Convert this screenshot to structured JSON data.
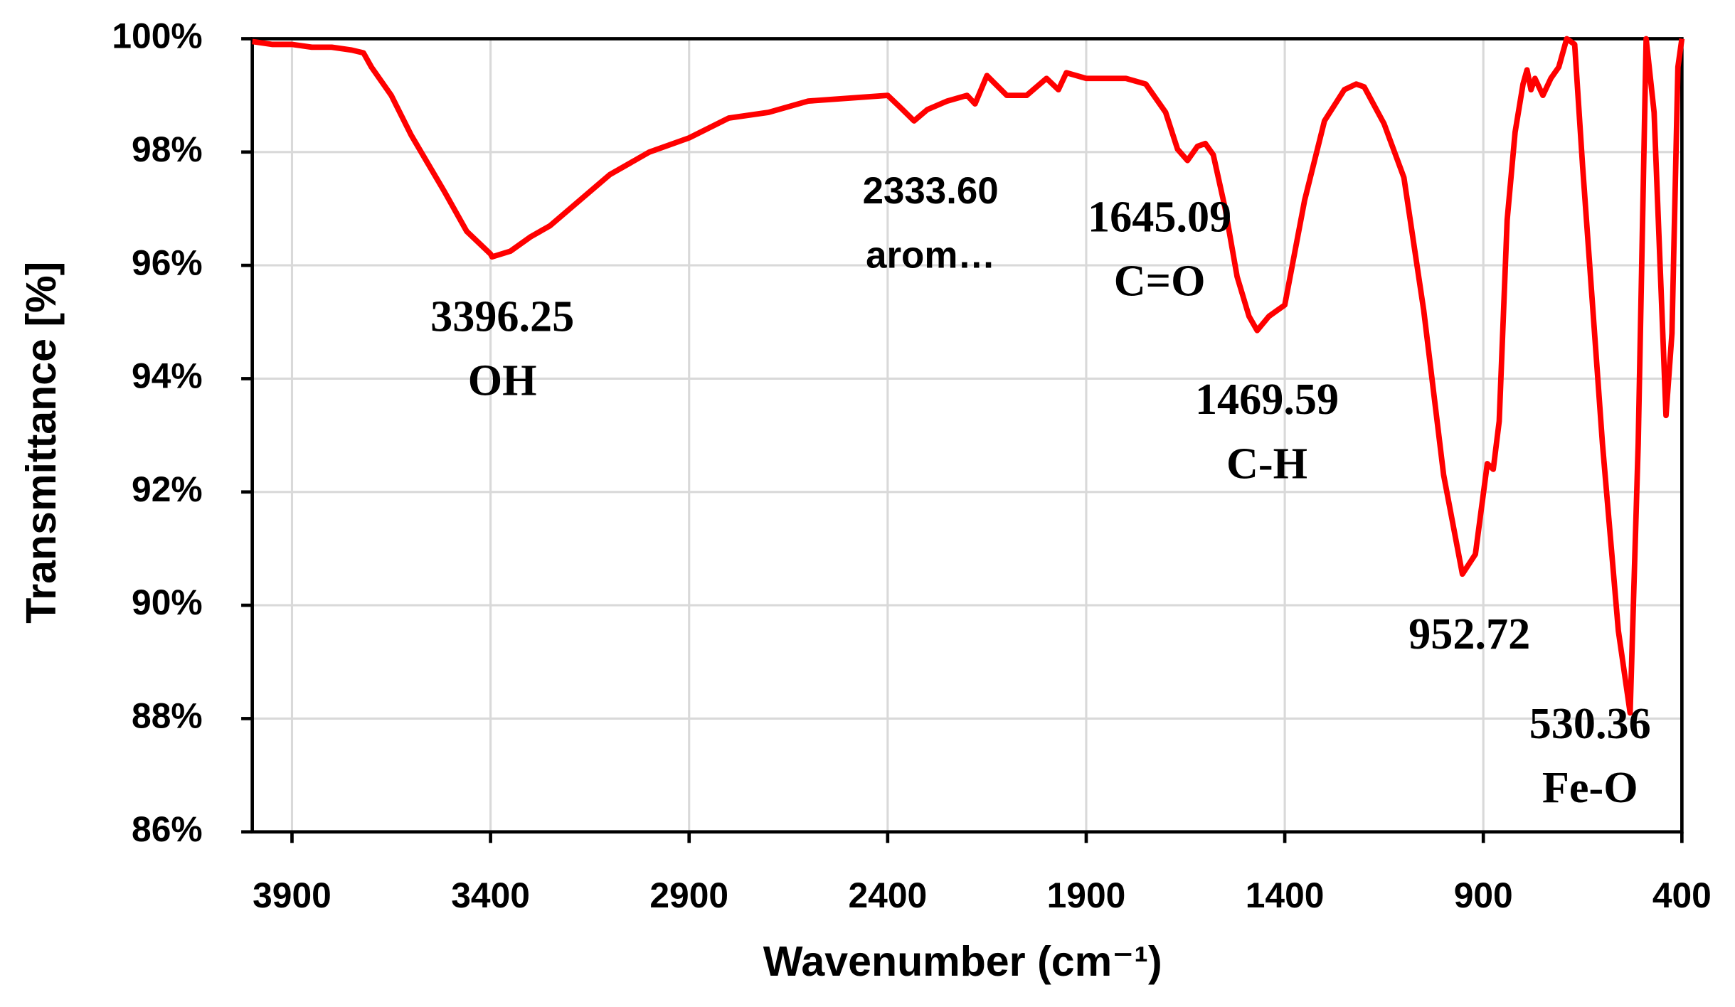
{
  "chart_data": {
    "type": "line",
    "xlabel": "Wavenumber (cm⁻¹)",
    "ylabel": "Transmittance [%]",
    "color": "#ff0000",
    "grid": true,
    "xlim": [
      4000,
      400
    ],
    "ylim": [
      86,
      100
    ],
    "xticks": [
      3900,
      3400,
      2900,
      2400,
      1900,
      1400,
      900,
      400
    ],
    "yticks": [
      {
        "value": 86,
        "label": "86%"
      },
      {
        "value": 88,
        "label": "88%"
      },
      {
        "value": 90,
        "label": "90%"
      },
      {
        "value": 92,
        "label": "92%"
      },
      {
        "value": 94,
        "label": "94%"
      },
      {
        "value": 96,
        "label": "96%"
      },
      {
        "value": 98,
        "label": "98%"
      },
      {
        "value": 100,
        "label": "100%"
      }
    ],
    "x": [
      4000,
      3950,
      3900,
      3850,
      3800,
      3750,
      3720,
      3700,
      3650,
      3600,
      3516,
      3460,
      3400,
      3396.25,
      3350,
      3300,
      3250,
      3200,
      3100,
      3000,
      2900,
      2800,
      2700,
      2600,
      2500,
      2400,
      2370,
      2333.6,
      2300,
      2250,
      2200,
      2180,
      2150,
      2100,
      2050,
      2000,
      1970,
      1950,
      1900,
      1800,
      1750,
      1700,
      1670,
      1645.09,
      1620,
      1600,
      1580,
      1550,
      1520,
      1490,
      1469.59,
      1440,
      1420,
      1400,
      1350,
      1300,
      1250,
      1220,
      1200,
      1150,
      1100,
      1050,
      1000,
      952.72,
      920,
      890,
      875,
      860,
      840,
      820,
      800,
      790,
      780,
      770,
      750,
      730,
      710,
      690,
      670,
      650,
      600,
      560,
      530.36,
      510,
      490,
      470,
      440,
      425,
      410,
      400
    ],
    "values": [
      99.95,
      99.9,
      99.9,
      99.85,
      99.85,
      99.8,
      99.75,
      99.5,
      99.0,
      98.3,
      97.3,
      96.6,
      96.2,
      96.15,
      96.25,
      96.5,
      96.7,
      97.0,
      97.6,
      98.0,
      98.25,
      98.6,
      98.7,
      98.9,
      98.95,
      99.0,
      98.8,
      98.55,
      98.75,
      98.9,
      99.0,
      98.85,
      99.35,
      99.0,
      99.0,
      99.3,
      99.1,
      99.4,
      99.3,
      99.3,
      99.2,
      98.7,
      98.05,
      97.85,
      98.1,
      98.15,
      97.95,
      97.0,
      95.8,
      95.1,
      94.85,
      95.1,
      95.2,
      95.3,
      97.15,
      98.55,
      99.1,
      99.2,
      99.15,
      98.5,
      97.55,
      95.2,
      92.3,
      90.55,
      90.9,
      92.5,
      92.4,
      93.25,
      96.8,
      98.35,
      99.2,
      99.45,
      99.1,
      99.3,
      99.0,
      99.3,
      99.5,
      100,
      99.9,
      97.75,
      92.85,
      89.55,
      88.1,
      92.85,
      100,
      98.7,
      93.35,
      94.8,
      99.5,
      100
    ],
    "annotations": [
      {
        "lines": [
          "3396.25",
          "OH"
        ]
      },
      {
        "lines": [
          "2333.60",
          "arom…"
        ]
      },
      {
        "lines": [
          "1645.09",
          "C=O"
        ]
      },
      {
        "lines": [
          "1469.59",
          "C-H"
        ]
      },
      {
        "lines": [
          "952.72"
        ]
      },
      {
        "lines": [
          "530.36",
          "Fe-O"
        ]
      }
    ]
  }
}
